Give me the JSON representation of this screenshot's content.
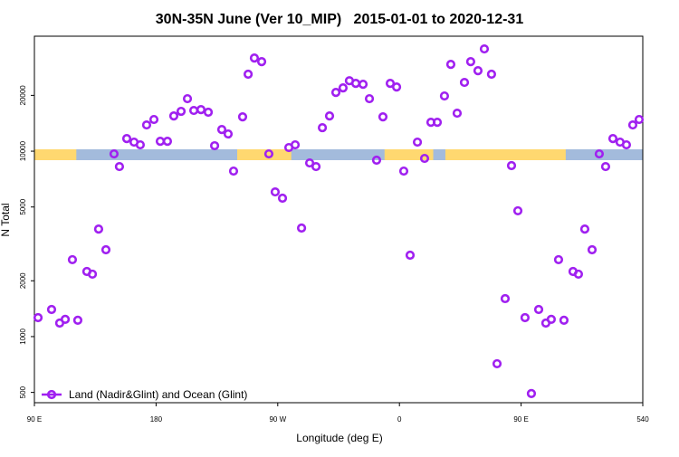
{
  "chart_data": {
    "type": "scatter",
    "title": "30N-35N June (Ver 10_MIP)   2015-01-01 to 2020-12-31",
    "xlabel": "Longitude (deg E)",
    "ylabel": "N Total",
    "xlim": [
      90,
      540
    ],
    "ylim": [
      440,
      41700
    ],
    "log_y": true,
    "xticks": [
      {
        "value": 90,
        "label": "90 E"
      },
      180,
      {
        "value": 270,
        "label": "90 W"
      },
      {
        "value": 360,
        "label": "0"
      },
      {
        "value": 450,
        "label": "90 E"
      },
      540
    ],
    "yticks": [
      500,
      1000,
      2000,
      5000,
      10000,
      20000
    ],
    "legend": "bottom-left",
    "land_color": "#ffd870",
    "ocean_color": "#a3bbdc",
    "land_ranges": [
      [
        90,
        121
      ],
      [
        240,
        280
      ],
      [
        349,
        385
      ],
      [
        394,
        483
      ]
    ],
    "series": [
      {
        "name": "Land (Nadir&Glint) and Ocean (Glint)",
        "color": "#a020f0",
        "x": [
          92.7,
          102.7,
          108.7,
          112.8,
          118.1,
          122.1,
          128.8,
          132.9,
          137.5,
          142.9,
          148.9,
          152.9,
          158.3,
          163.7,
          168.3,
          173.0,
          178.4,
          183.1,
          188.4,
          193.1,
          198.5,
          203.2,
          207.9,
          213.2,
          218.6,
          223.3,
          228.6,
          233.3,
          237.3,
          244.0,
          248.1,
          252.7,
          258.1,
          263.4,
          268.1,
          273.5,
          278.2,
          282.9,
          287.6,
          293.6,
          298.3,
          303.0,
          308.3,
          313.0,
          318.3,
          323.0,
          327.7,
          333.1,
          337.8,
          343.1,
          347.8,
          353.2,
          357.9,
          363.2,
          367.9,
          373.3,
          378.6,
          383.3,
          388.0,
          393.3,
          398.0,
          402.7,
          408.1,
          412.7,
          418.1,
          422.8,
          428.1,
          432.2,
          438.2,
          442.9,
          447.6,
          452.9,
          457.6,
          463.0,
          468.3,
          472.3,
          477.7,
          481.7,
          488.4,
          492.4,
          497.1,
          502.5,
          507.8,
          512.5,
          517.9,
          523.2,
          527.9,
          532.6,
          537.3
        ],
        "values": [
          1265,
          1400,
          1183,
          1239,
          2600,
          1225,
          2244,
          2172,
          3802,
          2939,
          9670,
          8260,
          11700,
          11190,
          10820,
          13850,
          14820,
          11310,
          11310,
          15490,
          16400,
          19190,
          16580,
          16750,
          16220,
          10700,
          13090,
          12380,
          7810,
          15320,
          26000,
          31800,
          30400,
          9670,
          6030,
          5580,
          10460,
          10820,
          3850,
          8640,
          8260,
          13390,
          15490,
          20750,
          21940,
          23990,
          23220,
          22960,
          19190,
          8940,
          15320,
          23220,
          22190,
          7810,
          2748,
          11190,
          9140,
          14320,
          14320,
          19850,
          29400,
          16030,
          23490,
          30400,
          27170,
          35600,
          26000,
          714,
          1603,
          8360,
          4770,
          1265,
          493,
          1400,
          1183,
          1239,
          2600,
          1225,
          2244,
          2172,
          3802,
          2939,
          9670,
          8260,
          11700,
          11190,
          10820,
          13850,
          14820
        ]
      }
    ]
  }
}
